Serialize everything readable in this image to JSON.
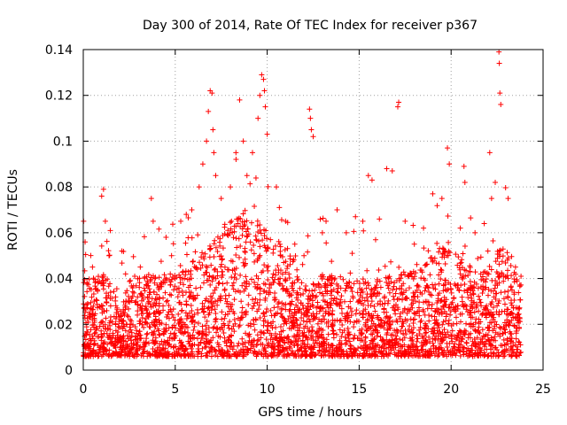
{
  "chart_data": {
    "type": "scatter",
    "title": "Day 300 of 2014, Rate Of TEC Index for receiver p367",
    "xlabel": "GPS time / hours",
    "ylabel": "ROTI / TECUs",
    "xlim": [
      0,
      25
    ],
    "ylim": [
      0,
      0.14
    ],
    "xticks": [
      0,
      5,
      10,
      15,
      20,
      25
    ],
    "xtick_labels": [
      "0",
      "5",
      "10",
      "15",
      "20",
      "25"
    ],
    "yticks": [
      0,
      0.02,
      0.04,
      0.06,
      0.08,
      0.1,
      0.12,
      0.14
    ],
    "ytick_labels": [
      "0",
      "0.02",
      "0.04",
      "0.06",
      "0.08",
      "0.1",
      "0.12",
      "0.14"
    ],
    "grid": true,
    "marker": "+",
    "color": "#ff0000",
    "series": [
      {
        "x": [
          0.1,
          0.5,
          1.0,
          1.1,
          1.2,
          1.4,
          2.1,
          2.3,
          3.1,
          3.7,
          3.8,
          3.9,
          4.5,
          4.8,
          5.3,
          5.6,
          5.9,
          6.3,
          6.5,
          6.7,
          6.8,
          6.9,
          7.0,
          7.05,
          7.1,
          7.2,
          7.5,
          8.0,
          8.3,
          8.5,
          8.7,
          8.9,
          9.2,
          9.5,
          9.6,
          9.7,
          9.8,
          9.85,
          9.9,
          10.0,
          10.5,
          11.0,
          11.5,
          12.0,
          12.3,
          12.35,
          12.4,
          12.5,
          13.0,
          13.2,
          13.8,
          14.3,
          14.8,
          15.2,
          15.5,
          15.7,
          16.1,
          16.5,
          16.8,
          17.1,
          17.15,
          17.5,
          18.0,
          18.5,
          19.0,
          19.5,
          19.8,
          19.9,
          20.5,
          20.7,
          20.75,
          21.3,
          21.8,
          22.0,
          22.1,
          22.2,
          22.4,
          22.6,
          22.62,
          22.65,
          22.7,
          23.1,
          23.5,
          23.8
        ],
        "y": [
          0.056,
          0.045,
          0.076,
          0.079,
          0.065,
          0.05,
          0.052,
          0.042,
          0.045,
          0.075,
          0.065,
          0.04,
          0.058,
          0.05,
          0.065,
          0.068,
          0.07,
          0.08,
          0.09,
          0.1,
          0.113,
          0.122,
          0.121,
          0.105,
          0.095,
          0.085,
          0.075,
          0.08,
          0.095,
          0.118,
          0.1,
          0.085,
          0.095,
          0.11,
          0.12,
          0.129,
          0.127,
          0.122,
          0.115,
          0.103,
          0.08,
          0.065,
          0.055,
          0.05,
          0.114,
          0.11,
          0.105,
          0.102,
          0.06,
          0.065,
          0.07,
          0.06,
          0.067,
          0.065,
          0.085,
          0.083,
          0.066,
          0.088,
          0.087,
          0.115,
          0.117,
          0.065,
          0.055,
          0.062,
          0.077,
          0.075,
          0.097,
          0.09,
          0.062,
          0.089,
          0.082,
          0.06,
          0.064,
          0.052,
          0.095,
          0.075,
          0.082,
          0.139,
          0.134,
          0.121,
          0.116,
          0.075,
          0.045,
          0.041
        ]
      }
    ]
  }
}
